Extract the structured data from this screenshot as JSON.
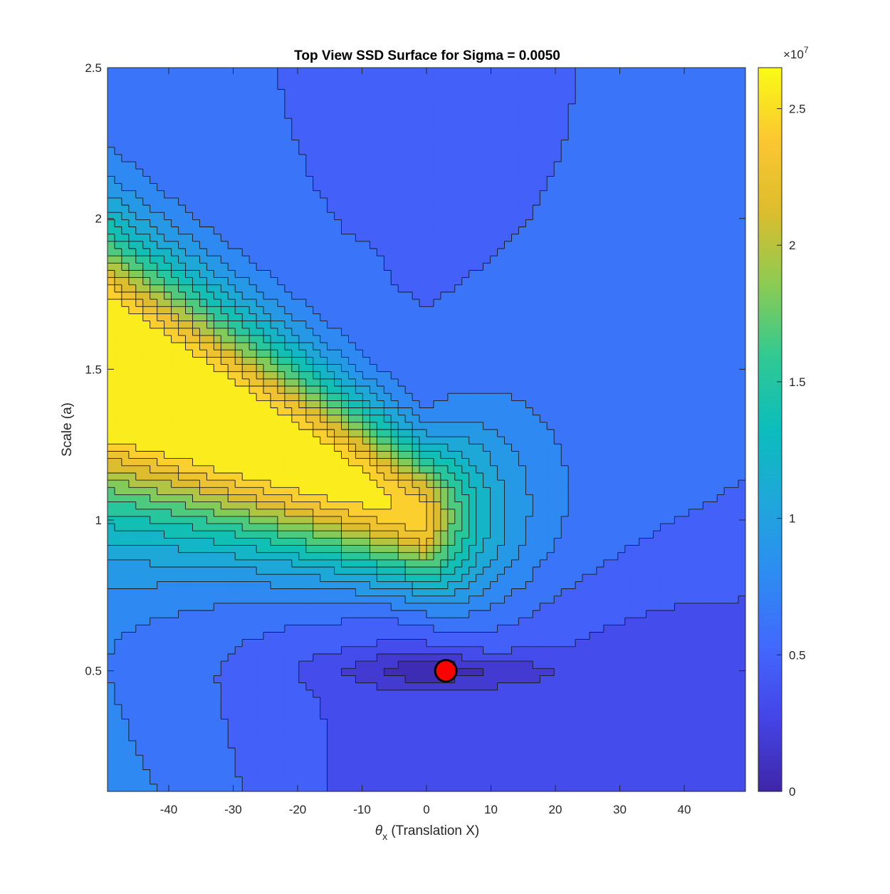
{
  "chart_data": {
    "type": "contour",
    "title": "Top View SSD Surface for Sigma = 0.0050",
    "xlabel": {
      "symbol": "θ",
      "subscript": "x",
      "text": " (Translation X)"
    },
    "ylabel": "Scale (a)",
    "xlim": [
      -49.5,
      49.5
    ],
    "ylim": [
      0.1,
      2.5
    ],
    "x_ticks": [
      -40,
      -30,
      -20,
      -10,
      0,
      10,
      20,
      30,
      40
    ],
    "x_tick_labels": [
      "-40",
      "-30",
      "-20",
      "-10",
      "0",
      "10",
      "20",
      "30",
      "40"
    ],
    "y_ticks": [
      0.5,
      1,
      1.5,
      2,
      2.5
    ],
    "y_tick_labels": [
      "0.5",
      "1",
      "1.5",
      "2",
      "2.5"
    ],
    "colorbar": {
      "colormap": "parula",
      "range": [
        0,
        2.65
      ],
      "ticks": [
        0,
        0.5,
        1,
        1.5,
        2,
        2.5
      ],
      "tick_labels": [
        "0",
        "0.5",
        "1",
        "1.5",
        "2",
        "2.5"
      ],
      "exponent_label": {
        "base": "×10",
        "power": "7"
      }
    },
    "contour_levels_x1e7": [
      0.1,
      0.25,
      0.4,
      0.55,
      0.7,
      0.85,
      1.0,
      1.15,
      1.3,
      1.45,
      1.6,
      1.75,
      1.9,
      2.05,
      2.2,
      2.35,
      2.5
    ],
    "minimum_marker": {
      "x": 3,
      "y": 0.5,
      "color": "#ff0000"
    },
    "grid": false
  }
}
